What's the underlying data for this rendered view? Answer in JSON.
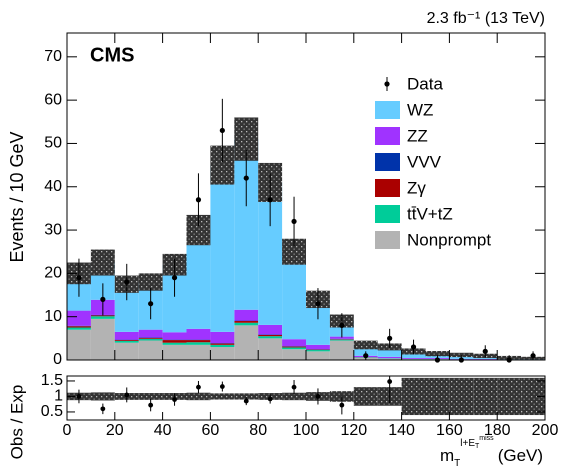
{
  "chart_data": [
    {
      "type": "stacked_histogram",
      "label": "CMS",
      "lumi": "2.3 fb⁻¹ (13 TeV)",
      "ylabel": "Events / 10 GeV",
      "bins": [
        0,
        10,
        20,
        30,
        40,
        50,
        60,
        70,
        80,
        90,
        100,
        110,
        120,
        130,
        140,
        150,
        160,
        170,
        180,
        190,
        200
      ],
      "xlim": [
        0,
        200
      ],
      "ylim": [
        0,
        75.5
      ],
      "yticks": [
        0,
        10,
        20,
        30,
        40,
        50,
        60,
        70
      ],
      "data": {
        "name": "Data",
        "color": "#000000",
        "values": [
          19,
          14,
          18,
          13,
          19,
          37,
          53,
          42,
          37,
          32,
          13,
          8,
          1,
          5,
          3,
          0,
          0,
          2,
          0,
          1
        ],
        "errors": [
          4.4,
          3.7,
          4.2,
          3.6,
          4.4,
          6.1,
          7.3,
          6.5,
          6.1,
          5.7,
          3.6,
          2.8,
          1,
          2.2,
          1.7,
          1.1,
          1.1,
          1.4,
          1.1,
          1
        ]
      },
      "series": [
        {
          "name": "WZ",
          "color": "#66ccff",
          "values": [
            8.6,
            8.6,
            11,
            11,
            15.6,
            22.8,
            38.5,
            39.4,
            32.9,
            20.2,
            10.5,
            3.6,
            2.5,
            2.3,
            1.5,
            1.0,
            0.9,
            0.7,
            0.4,
            0.3
          ]
        },
        {
          "name": "ZZ",
          "color": "#a033ff",
          "values": [
            3.5,
            3.5,
            1.8,
            1.8,
            1.7,
            2.5,
            2.6,
            2.5,
            2.2,
            1.6,
            1,
            0.5,
            0.3,
            0.3,
            0.2,
            0.2,
            0.1,
            0.1,
            0.05,
            0.05
          ]
        },
        {
          "name": "VVV",
          "color": "#0033aa",
          "values": [
            0.1,
            0.1,
            0.1,
            0.1,
            0.1,
            0.1,
            0.1,
            0.1,
            0.1,
            0.1,
            0.1,
            0.1,
            0.02,
            0.02,
            0.02,
            0.02,
            0.02,
            0.02,
            0.02,
            0.02
          ]
        },
        {
          "name": "Zγ",
          "color": "#aa0000",
          "values": [
            0.3,
            0.2,
            0.2,
            0.2,
            0.6,
            0.5,
            0.3,
            0.4,
            0.3,
            0.2,
            0.1,
            0.1,
            0.05,
            0,
            0,
            0,
            0,
            0,
            0,
            0
          ]
        },
        {
          "name": "tt̄V+tZ",
          "color": "#00cc99",
          "values": [
            0.5,
            0.6,
            0.4,
            0.4,
            0.5,
            0.6,
            0.5,
            0.6,
            0.5,
            0.4,
            0.3,
            0.2,
            0.1,
            0.1,
            0.05,
            0.05,
            0.05,
            0.03,
            0.02,
            0.02
          ]
        },
        {
          "name": "Nonprompt",
          "color": "#b3b3b3",
          "values": [
            7,
            9.5,
            4,
            4.5,
            3.5,
            3.5,
            3,
            8,
            5,
            2.5,
            2,
            4.5,
            0.5,
            0.3,
            0.2,
            0.2,
            0.1,
            0.1,
            0.05,
            0.05
          ]
        }
      ],
      "band": [
        2.5,
        3,
        2,
        2,
        2.5,
        3.5,
        4.5,
        5,
        4.5,
        3,
        2,
        1.5,
        1,
        0.8,
        0.7,
        0.6,
        0.5,
        0.5,
        0.4,
        0.3
      ]
    },
    {
      "type": "ratio",
      "ylabel": "Obs / Exp",
      "xlabel": {
        "base": "m",
        "sub": "T",
        "sup": "l+E",
        "supsub": "T",
        "supsup": "miss",
        "unit": "(GeV)"
      },
      "xlim": [
        0,
        200
      ],
      "xticks": [
        0,
        20,
        40,
        60,
        80,
        100,
        120,
        140,
        160,
        180,
        200
      ],
      "ylim": [
        0.24,
        1.66
      ],
      "yticks": [
        0.5,
        1,
        1.5
      ],
      "values": [
        1.0,
        0.6,
        1.05,
        0.72,
        0.9,
        1.3,
        1.32,
        0.85,
        0.92,
        1.3,
        1.0,
        0.72,
        null,
        1.48,
        null,
        null,
        null,
        null,
        null,
        null
      ],
      "errors": [
        0.22,
        0.17,
        0.24,
        0.2,
        0.2,
        0.2,
        0.16,
        0.13,
        0.15,
        0.23,
        0.26,
        0.3,
        null,
        0.7,
        null,
        null,
        null,
        null,
        null,
        null
      ],
      "band": [
        0.12,
        0.13,
        0.11,
        0.11,
        0.11,
        0.12,
        0.1,
        0.1,
        0.11,
        0.12,
        0.14,
        0.17,
        0.3,
        0.3,
        0.6,
        0.6,
        0.6,
        0.6,
        0.6,
        0.6
      ]
    }
  ]
}
